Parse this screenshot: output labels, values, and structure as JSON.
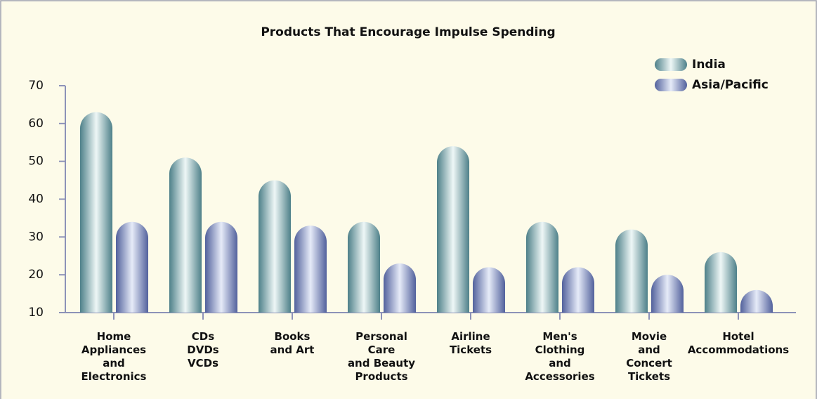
{
  "chart_data": {
    "type": "bar",
    "title": "Products That Encourage Impulse Spending",
    "categories": [
      [
        "Home",
        "Appliances",
        "and",
        "Electronics"
      ],
      [
        "CDs",
        "DVDs",
        "VCDs"
      ],
      [
        "Books",
        "and Art"
      ],
      [
        "Personal",
        "Care",
        "and Beauty",
        "Products"
      ],
      [
        "Airline",
        "Tickets"
      ],
      [
        "Men's",
        "Clothing",
        "and",
        "Accessories"
      ],
      [
        "Movie",
        "and",
        "Concert",
        "Tickets"
      ],
      [
        "Hotel",
        "Accommodations"
      ]
    ],
    "series": [
      {
        "name": "India",
        "color": "#5f949b",
        "values": [
          63,
          51,
          45,
          34,
          54,
          34,
          32,
          26
        ]
      },
      {
        "name": "Asia/Pacific",
        "color": "#6474ac",
        "values": [
          34,
          34,
          33,
          23,
          22,
          22,
          20,
          16
        ]
      }
    ],
    "ylim": [
      10,
      70
    ],
    "yticks": [
      10,
      20,
      30,
      40,
      50,
      60,
      70
    ],
    "legend": "upper right"
  }
}
